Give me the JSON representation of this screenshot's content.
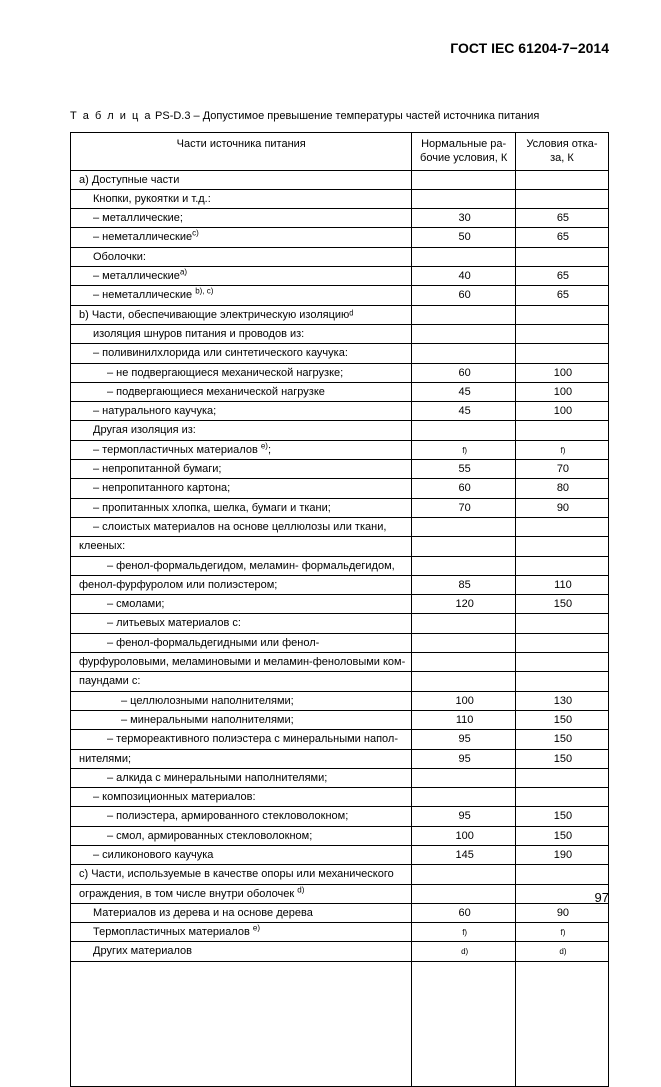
{
  "doc_standard": "ГОСТ IEC 61204-7−2014",
  "table": {
    "caption_lead": "Т а б л и ц а",
    "caption_rest": "  PS-D.3 – Допустимое превышение температуры частей источника питания",
    "header": {
      "c1": "Части источника питания",
      "c2": "Нормальные ра-\nбочие условия, К",
      "c3": "Условия отка-\nза, К"
    },
    "rows": [
      {
        "left": "a)  Доступные  части",
        "mid": "",
        "right": ""
      },
      {
        "left": "Кнопки, рукоятки и т.д.:",
        "mid": "",
        "right": "",
        "cls": "ind1"
      },
      {
        "left": "–   металлические;",
        "mid": "30",
        "right": "65",
        "cls": "ind1"
      },
      {
        "left": "–   неметаллические<sup>c)</sup>",
        "mid": "50",
        "right": "65",
        "cls": "ind1"
      },
      {
        "left": "Оболочки:",
        "mid": "",
        "right": "",
        "cls": "ind1"
      },
      {
        "left": "–   металлические<sup>a)</sup>",
        "mid": "40",
        "right": "65",
        "cls": "ind1"
      },
      {
        "left": "–   неметаллические <sup>b), c)</sup>",
        "mid": "60",
        "right": "65",
        "cls": "ind1"
      },
      {
        "left": "b)  Части, обеспечивающие электрическую изоляциюᵈ",
        "mid": "",
        "right": ""
      },
      {
        "left": "изоляция шнуров питания и проводов из:",
        "mid": "",
        "right": "",
        "cls": "ind1"
      },
      {
        "left": "–   поливинилхлорида или синтетического каучука:",
        "mid": "",
        "right": "",
        "cls": "ind1"
      },
      {
        "left": "–   не подвергающиеся механической нагрузке;",
        "mid": "60",
        "right": "100",
        "cls": "ind2"
      },
      {
        "left": "–   подвергающиеся механической нагрузке",
        "mid": "45",
        "right": "100",
        "cls": "ind2"
      },
      {
        "left": "–   натурального каучука;",
        "mid": "45",
        "right": "100",
        "cls": "ind1"
      },
      {
        "left": "Другая изоляция из:",
        "mid": "",
        "right": "",
        "cls": "ind1"
      },
      {
        "left": "–   термопластичных материалов <sup>e)</sup>;",
        "mid": "<span class=\"fn\">f)</span>",
        "right": "<span class=\"fn\">f)</span>",
        "cls": "ind1"
      },
      {
        "left": "–   непропитанной бумаги;",
        "mid": "55",
        "right": "70",
        "cls": "ind1"
      },
      {
        "left": "–   непропитанного картона;",
        "mid": "60",
        "right": "80",
        "cls": "ind1"
      },
      {
        "left": "–   пропитанных хлопка, шелка, бумаги и ткани;",
        "mid": "70",
        "right": "90",
        "cls": "ind1"
      },
      {
        "left": "–   слоистых  материалов  на  основе  целлюлозы  или  ткани,",
        "mid": "",
        "right": "",
        "cls": "ind1 just"
      },
      {
        "left": "клееных:",
        "mid": "",
        "right": ""
      },
      {
        "left": "–   фенол-формальдегидом,  меламин-  формальдегидом,",
        "mid": "",
        "right": "",
        "cls": "ind2 just"
      },
      {
        "left": "фенол-фурфуролом или полиэстером;",
        "mid": "85",
        "right": "110"
      },
      {
        "left": "–   смолами;",
        "mid": "120",
        "right": "150",
        "cls": "ind2"
      },
      {
        "left": "–   литьевых материалов с:",
        "mid": "",
        "right": "",
        "cls": "ind2"
      },
      {
        "left": "–   фенол-формальдегидными              или              фенол-",
        "mid": "",
        "right": "",
        "cls": "ind2 just"
      },
      {
        "left": "фурфуроловыми, меламиновыми и меламин-феноловыми ком-",
        "mid": "",
        "right": "",
        "cls": "just"
      },
      {
        "left": "паундами с:",
        "mid": "",
        "right": ""
      },
      {
        "left": "– целлюлозными наполнителями;",
        "mid": "100",
        "right": "130",
        "cls": "ind3"
      },
      {
        "left": "– минеральными наполнителями;",
        "mid": "110",
        "right": "150",
        "cls": "ind3"
      },
      {
        "left": "–  термореактивного  полиэстера  с  минеральными  напол-",
        "mid": "95",
        "right": "150",
        "cls": "ind2 just"
      },
      {
        "left": "нителями;",
        "mid": "95",
        "right": "150"
      },
      {
        "left": "–   алкида с минеральными наполнителями;",
        "mid": "",
        "right": "",
        "cls": "ind2"
      },
      {
        "left": "–   композиционных материалов:",
        "mid": "",
        "right": "",
        "cls": "ind1"
      },
      {
        "left": "–   полиэстера, армированного стекловолокном;",
        "mid": "95",
        "right": "150",
        "cls": "ind2"
      },
      {
        "left": "–   смол, армированных стекловолокном;",
        "mid": "100",
        "right": "150",
        "cls": "ind2"
      },
      {
        "left": "–   силиконового каучука",
        "mid": "145",
        "right": "190",
        "cls": "ind1"
      },
      {
        "left": "с)  Части,  используемые  в  качестве  опоры  или  механического",
        "mid": "",
        "right": "",
        "cls": "just"
      },
      {
        "left": "ограждения, в том числе внутри         оболочек <sup>d)</sup>",
        "mid": "",
        "right": ""
      },
      {
        "left": "Материалов из дерева и на основе дерева",
        "mid": "60",
        "right": "90",
        "cls": "ind1"
      },
      {
        "left": "Термопластичных материалов <sup>e)</sup>",
        "mid": "<span class=\"fn\">f)</span>",
        "right": "<span class=\"fn\">f)</span>",
        "cls": "ind1"
      },
      {
        "left": "Других материалов",
        "mid": "<span class=\"fn\">d)</span>",
        "right": "<span class=\"fn\">d)</span>",
        "cls": "ind1"
      }
    ]
  },
  "page_number": "97"
}
